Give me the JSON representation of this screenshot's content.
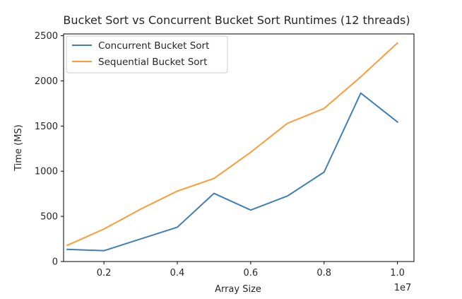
{
  "chart_data": {
    "type": "line",
    "title": "Bucket Sort vs Concurrent Bucket Sort Runtimes (12 threads)",
    "xlabel": "Array Size",
    "ylabel": "Time (MS)",
    "x_offset_label": "1e7",
    "xlim": [
      0.09,
      1.045
    ],
    "ylim": [
      0,
      2520
    ],
    "x_ticks": [
      0.2,
      0.4,
      0.6,
      0.8,
      1.0
    ],
    "x_tick_labels": [
      "0.2",
      "0.4",
      "0.6",
      "0.8",
      "1.0"
    ],
    "y_ticks": [
      0,
      500,
      1000,
      1500,
      2000,
      2500
    ],
    "y_tick_labels": [
      "0",
      "500",
      "1000",
      "1500",
      "2000",
      "2500"
    ],
    "x": [
      0.1,
      0.2,
      0.3,
      0.4,
      0.5,
      0.6,
      0.7,
      0.8,
      0.9,
      1.0
    ],
    "series": [
      {
        "name": "Concurrent Bucket Sort",
        "color": "#3f7fb5",
        "values": [
          135,
          120,
          250,
          380,
          755,
          570,
          725,
          990,
          1865,
          1545
        ]
      },
      {
        "name": "Sequential Bucket Sort",
        "color": "#ff9a3a",
        "values": [
          180,
          360,
          580,
          780,
          920,
          1210,
          1530,
          1695,
          2045,
          2420
        ]
      }
    ],
    "legend_position": "top-left",
    "grid": false
  }
}
